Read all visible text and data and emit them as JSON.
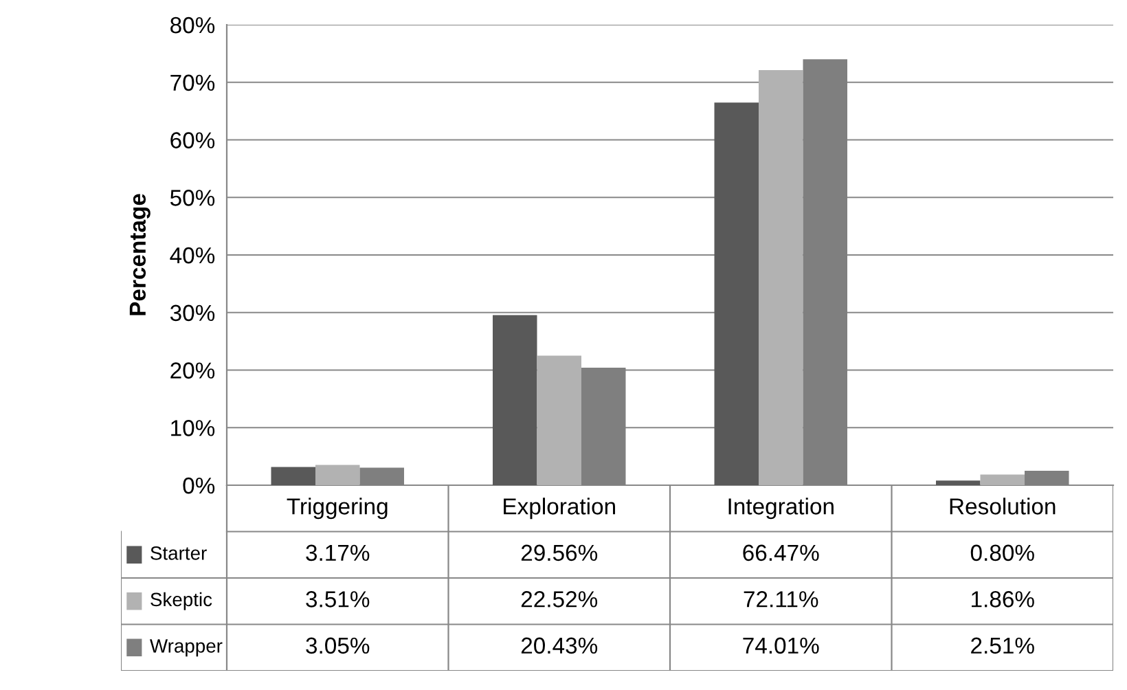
{
  "chart_data": {
    "type": "bar",
    "ylabel": "Percentage",
    "categories": [
      "Triggering",
      "Exploration",
      "Integration",
      "Resolution"
    ],
    "series": [
      {
        "name": "Starter",
        "color": "#595959",
        "values": [
          3.17,
          29.56,
          66.47,
          0.8
        ],
        "value_labels": [
          "3.17%",
          "29.56%",
          "66.47%",
          "0.80%"
        ]
      },
      {
        "name": "Skeptic",
        "color": "#b2b2b2",
        "values": [
          3.51,
          22.52,
          72.11,
          1.86
        ],
        "value_labels": [
          "3.51%",
          "22.52%",
          "72.11%",
          "1.86%"
        ]
      },
      {
        "name": "Wrapper",
        "color": "#7f7f7f",
        "values": [
          3.05,
          20.43,
          74.01,
          2.51
        ],
        "value_labels": [
          "3.05%",
          "20.43%",
          "74.01%",
          "2.51%"
        ]
      }
    ],
    "ylim": [
      0,
      80
    ],
    "yticks": [
      {
        "value": 0,
        "label": "0%"
      },
      {
        "value": 10,
        "label": "10%"
      },
      {
        "value": 20,
        "label": "20%"
      },
      {
        "value": 30,
        "label": "30%"
      },
      {
        "value": 40,
        "label": "40%"
      },
      {
        "value": 50,
        "label": "50%"
      },
      {
        "value": 60,
        "label": "60%"
      },
      {
        "value": 70,
        "label": "70%"
      },
      {
        "value": 80,
        "label": "80%"
      }
    ],
    "grid": "y",
    "legend": "bottom"
  }
}
